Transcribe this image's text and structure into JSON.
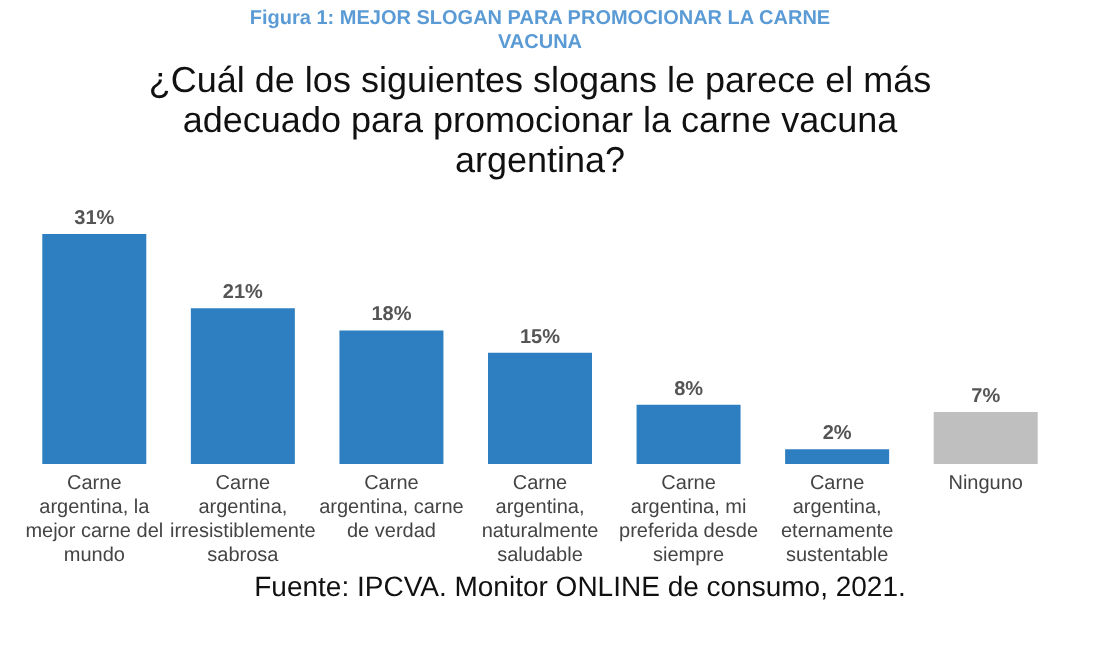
{
  "chart_data": {
    "type": "bar",
    "title": "Figura 1: MEJOR SLOGAN PARA PROMOCIONAR LA CARNE VACUNA",
    "subtitle": "¿Cuál de los siguientes slogans le parece el más adecuado para promocionar la carne vacuna argentina?",
    "categories": [
      "Carne argentina, la mejor carne del mundo",
      "Carne argentina, irresistiblemente sabrosa",
      "Carne argentina, carne de verdad",
      "Carne argentina, naturalmente saludable",
      "Carne argentina, mi preferida desde siempre",
      "Carne argentina, eternamente sustentable",
      "Ninguno"
    ],
    "values": [
      31,
      21,
      18,
      15,
      8,
      2,
      7
    ],
    "value_labels": [
      "31%",
      "21%",
      "18%",
      "15%",
      "8%",
      "2%",
      "7%"
    ],
    "colors": [
      "#2e7fc1",
      "#2e7fc1",
      "#2e7fc1",
      "#2e7fc1",
      "#2e7fc1",
      "#2e7fc1",
      "#bfbfbf"
    ],
    "annotations": [
      "Fuente: IPCVA. Monitor ONLINE de consumo, 2021."
    ],
    "grid": false
  }
}
